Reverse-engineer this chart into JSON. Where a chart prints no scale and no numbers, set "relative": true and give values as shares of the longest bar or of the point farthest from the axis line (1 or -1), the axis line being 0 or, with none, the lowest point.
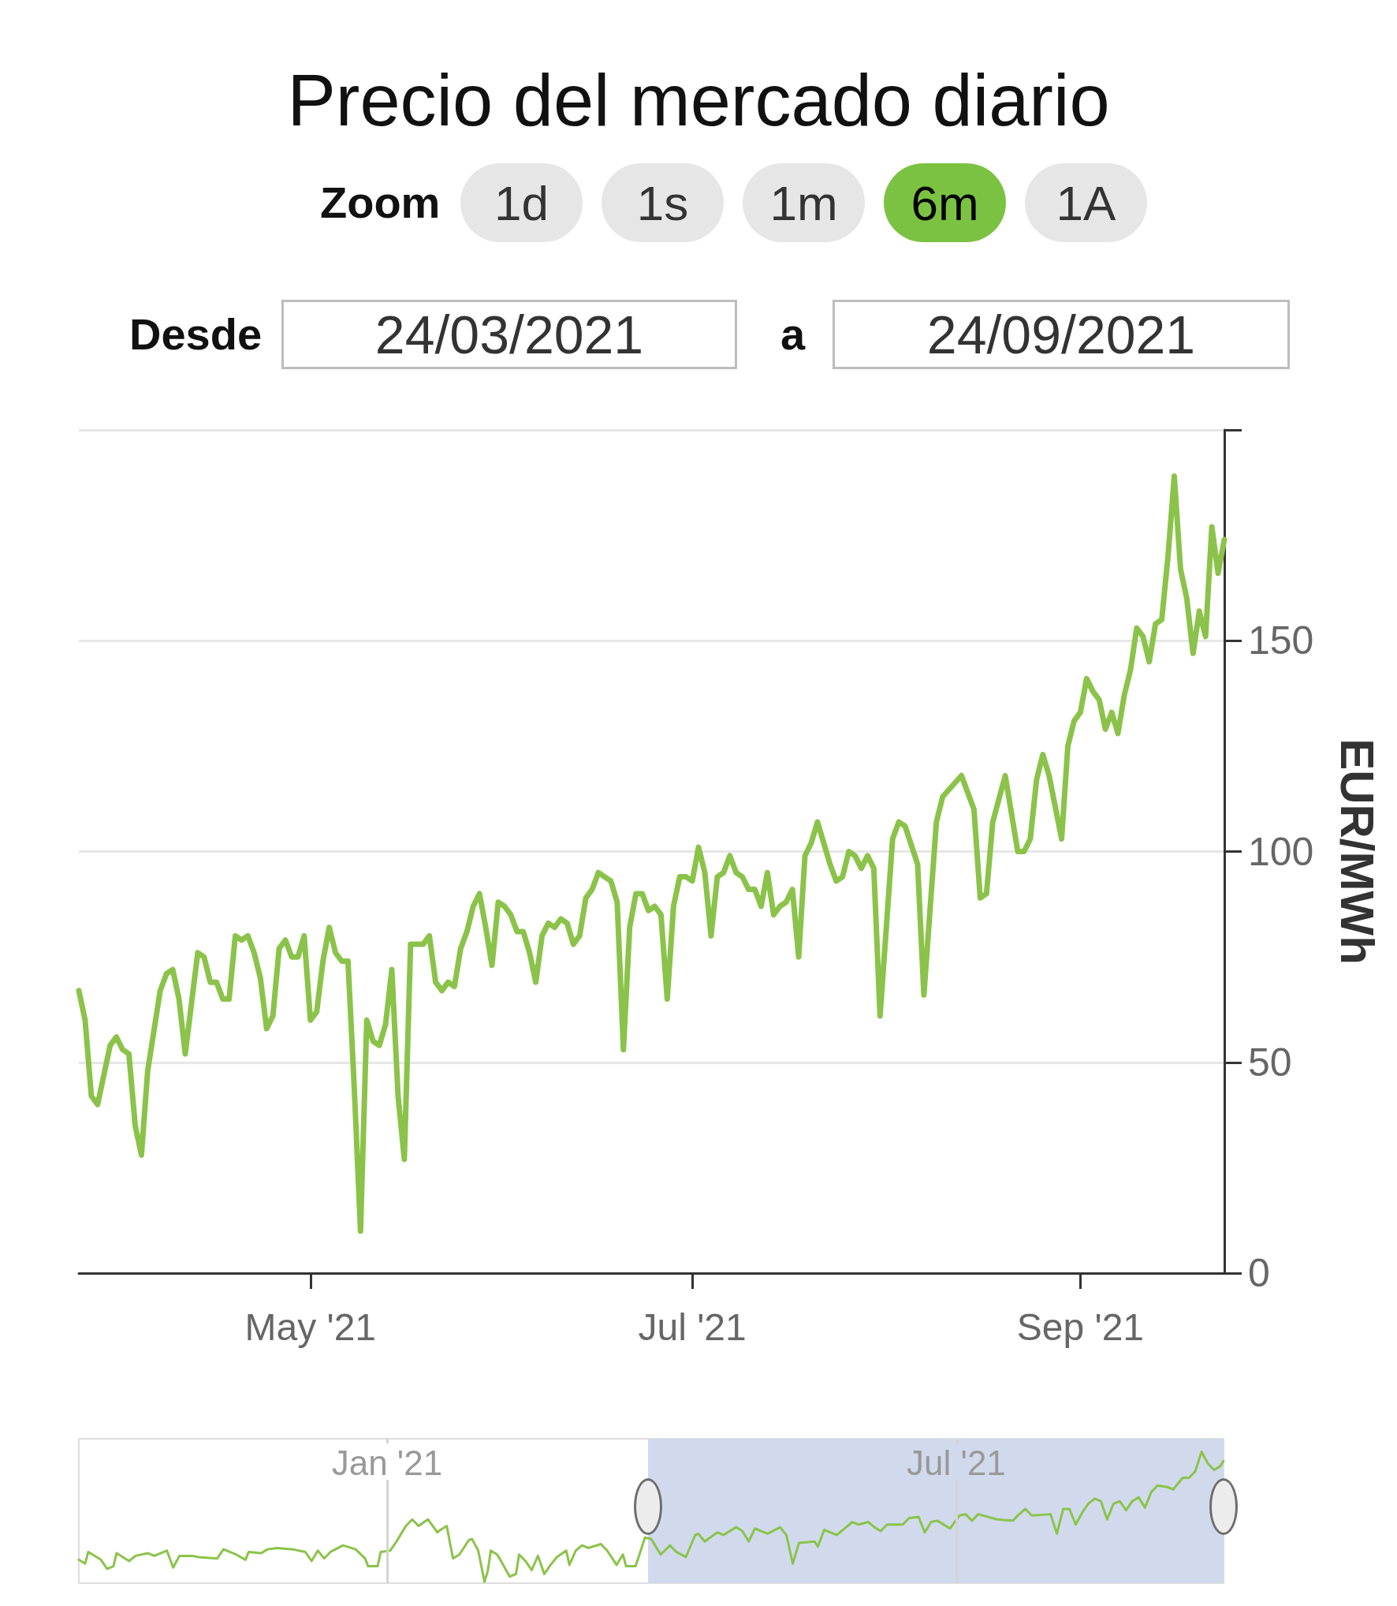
{
  "chart_data": [
    {
      "type": "line",
      "title": "Precio del mercado diario",
      "ylabel": "EUR/MWh",
      "annotations": [
        "Zoom",
        "1d",
        "1s",
        "1m",
        "6m",
        "1A",
        "Desde",
        "24/03/2021",
        "a",
        "24/09/2021"
      ],
      "x": [
        "2021-03-25",
        "2021-03-26",
        "2021-03-27",
        "2021-03-28",
        "2021-03-30",
        "2021-03-31",
        "2021-04-01",
        "2021-04-02",
        "2021-04-03",
        "2021-04-04",
        "2021-04-05",
        "2021-04-07",
        "2021-04-08",
        "2021-04-09",
        "2021-04-10",
        "2021-04-11",
        "2021-04-12",
        "2021-04-13",
        "2021-04-14",
        "2021-04-15",
        "2021-04-16",
        "2021-04-17",
        "2021-04-18",
        "2021-04-19",
        "2021-04-20",
        "2021-04-21",
        "2021-04-22",
        "2021-04-23",
        "2021-04-24",
        "2021-04-25",
        "2021-04-26",
        "2021-04-27",
        "2021-04-28",
        "2021-04-29",
        "2021-04-30",
        "2021-05-01",
        "2021-05-02",
        "2021-05-03",
        "2021-05-04",
        "2021-05-05",
        "2021-05-06",
        "2021-05-07",
        "2021-05-08",
        "2021-05-09",
        "2021-05-10",
        "2021-05-11",
        "2021-05-12",
        "2021-05-13",
        "2021-05-14",
        "2021-05-15",
        "2021-05-16",
        "2021-05-17",
        "2021-05-18",
        "2021-05-19",
        "2021-05-20",
        "2021-05-21",
        "2021-05-22",
        "2021-05-23",
        "2021-05-24",
        "2021-05-25",
        "2021-05-26",
        "2021-05-27",
        "2021-05-28",
        "2021-05-29",
        "2021-05-30",
        "2021-05-31",
        "2021-06-01",
        "2021-06-02",
        "2021-06-03",
        "2021-06-04",
        "2021-06-05",
        "2021-06-06",
        "2021-06-07",
        "2021-06-08",
        "2021-06-09",
        "2021-06-10",
        "2021-06-11",
        "2021-06-12",
        "2021-06-13",
        "2021-06-14",
        "2021-06-15",
        "2021-06-16",
        "2021-06-17",
        "2021-06-18",
        "2021-06-19",
        "2021-06-20",
        "2021-06-21",
        "2021-06-22",
        "2021-06-23",
        "2021-06-24",
        "2021-06-25",
        "2021-06-26",
        "2021-06-27",
        "2021-06-28",
        "2021-06-29",
        "2021-06-30",
        "2021-07-01",
        "2021-07-02",
        "2021-07-03",
        "2021-07-04",
        "2021-07-05",
        "2021-07-06",
        "2021-07-07",
        "2021-07-08",
        "2021-07-09",
        "2021-07-10",
        "2021-07-11",
        "2021-07-12",
        "2021-07-13",
        "2021-07-14",
        "2021-07-15",
        "2021-07-16",
        "2021-07-17",
        "2021-07-18",
        "2021-07-19",
        "2021-07-20",
        "2021-07-21",
        "2021-07-22",
        "2021-07-23",
        "2021-07-24",
        "2021-07-25",
        "2021-07-26",
        "2021-07-27",
        "2021-07-28",
        "2021-07-29",
        "2021-07-30",
        "2021-07-31",
        "2021-08-02",
        "2021-08-03",
        "2021-08-04",
        "2021-08-06",
        "2021-08-07",
        "2021-08-09",
        "2021-08-10",
        "2021-08-13",
        "2021-08-15",
        "2021-08-16",
        "2021-08-17",
        "2021-08-18",
        "2021-08-20",
        "2021-08-22",
        "2021-08-23",
        "2021-08-24",
        "2021-08-25",
        "2021-08-26",
        "2021-08-27",
        "2021-08-29",
        "2021-08-30",
        "2021-08-31",
        "2021-09-01",
        "2021-09-02",
        "2021-09-03",
        "2021-09-04",
        "2021-09-05",
        "2021-09-06",
        "2021-09-07",
        "2021-09-08",
        "2021-09-09",
        "2021-09-10",
        "2021-09-11",
        "2021-09-12",
        "2021-09-13",
        "2021-09-14",
        "2021-09-15",
        "2021-09-16",
        "2021-09-17",
        "2021-09-18",
        "2021-09-19",
        "2021-09-20",
        "2021-09-21",
        "2021-09-22",
        "2021-09-23",
        "2021-09-24"
      ],
      "values": [
        67,
        60,
        42,
        40,
        54,
        56,
        53,
        52,
        35,
        28,
        48,
        67,
        71,
        72,
        65,
        52,
        64,
        76,
        75,
        69,
        69,
        65,
        65,
        80,
        79,
        80,
        76,
        70,
        58,
        61,
        77,
        79,
        75,
        75,
        80,
        60,
        62,
        74,
        82,
        76,
        74,
        74,
        44,
        10,
        60,
        55,
        54,
        59,
        72,
        42,
        27,
        78,
        78,
        78,
        80,
        69,
        67,
        69,
        68,
        77,
        81,
        87,
        90,
        82,
        73,
        88,
        87,
        85,
        81,
        81,
        76,
        69,
        80,
        83,
        82,
        84,
        83,
        78,
        80,
        89,
        91,
        95,
        94,
        93,
        88,
        53,
        82,
        90,
        90,
        86,
        87,
        85,
        65,
        87,
        94,
        94,
        93,
        101,
        95,
        80,
        94,
        95,
        99,
        95,
        94,
        91,
        91,
        87,
        95,
        85,
        87,
        88,
        91,
        75,
        99,
        102,
        107,
        102,
        97,
        93,
        94,
        100,
        99,
        96,
        99,
        96,
        61,
        103,
        107,
        106,
        97,
        66,
        107,
        113,
        118,
        110,
        89,
        90,
        107,
        118,
        100,
        100,
        103,
        117,
        123,
        118,
        103,
        125,
        131,
        133,
        141,
        138,
        136,
        129,
        133,
        128,
        137,
        143,
        153,
        151,
        145,
        154,
        155,
        170,
        189,
        167,
        160,
        147,
        157,
        151,
        177,
        166,
        174
      ],
      "color": "#8bc34a",
      "xlim": [
        "2021-03-25",
        "2021-09-24"
      ],
      "xticks": [
        {
          "value": "2021-05-01",
          "label": "May '21"
        },
        {
          "value": "2021-07-01",
          "label": "Jul '21"
        },
        {
          "value": "2021-09-01",
          "label": "Sep '21"
        }
      ],
      "ylim": [
        0,
        200
      ],
      "yticks": [
        0,
        50,
        100,
        150,
        {
          "value": 200,
          "label": null
        }
      ],
      "grid": "y"
    },
    {
      "type": "line",
      "relative": true,
      "x": [
        "2020-09-25",
        "2020-09-27",
        "2020-09-28",
        "2020-10-02",
        "2020-10-04",
        "2020-10-06",
        "2020-10-07",
        "2020-10-11",
        "2020-10-13",
        "2020-10-17",
        "2020-10-19",
        "2020-10-23",
        "2020-10-25",
        "2020-10-27",
        "2020-10-31",
        "2020-11-02",
        "2020-11-08",
        "2020-11-10",
        "2020-11-14",
        "2020-11-17",
        "2020-11-18",
        "2020-11-22",
        "2020-11-24",
        "2020-11-27",
        "2020-12-02",
        "2020-12-06",
        "2020-12-08",
        "2020-12-10",
        "2020-12-12",
        "2020-12-14",
        "2020-12-18",
        "2020-12-22",
        "2020-12-25",
        "2020-12-26",
        "2020-12-29",
        "2020-12-30",
        "2021-01-02",
        "2021-01-04",
        "2021-01-07",
        "2021-01-09",
        "2021-01-11",
        "2021-01-14",
        "2021-01-17",
        "2021-01-18",
        "2021-01-20",
        "2021-01-21",
        "2021-01-22",
        "2021-01-24",
        "2021-01-27",
        "2021-01-28",
        "2021-01-30",
        "2021-02-01",
        "2021-02-02",
        "2021-02-03",
        "2021-02-05",
        "2021-02-06",
        "2021-02-09",
        "2021-02-11",
        "2021-02-12",
        "2021-02-14",
        "2021-02-16",
        "2021-02-18",
        "2021-02-20",
        "2021-02-22",
        "2021-02-24",
        "2021-02-27",
        "2021-02-28",
        "2021-03-02",
        "2021-03-04",
        "2021-03-06",
        "2021-03-10",
        "2021-03-12",
        "2021-03-15",
        "2021-03-17",
        "2021-03-18",
        "2021-03-21",
        "2021-03-22",
        "2021-03-24",
        "2021-03-26",
        "2021-03-29",
        "2021-04-01",
        "2021-04-03",
        "2021-04-06",
        "2021-04-09",
        "2021-04-10",
        "2021-04-12",
        "2021-04-16",
        "2021-04-18",
        "2021-04-22",
        "2021-04-24",
        "2021-04-26",
        "2021-04-28",
        "2021-05-02",
        "2021-05-06",
        "2021-05-08",
        "2021-05-10",
        "2021-05-12",
        "2021-05-17",
        "2021-05-18",
        "2021-05-20",
        "2021-05-24",
        "2021-05-27",
        "2021-05-29",
        "2021-05-31",
        "2021-06-03",
        "2021-06-05",
        "2021-06-07",
        "2021-06-09",
        "2021-06-14",
        "2021-06-16",
        "2021-06-19",
        "2021-06-21",
        "2021-06-23",
        "2021-06-25",
        "2021-06-29",
        "2021-07-02",
        "2021-07-04",
        "2021-07-06",
        "2021-07-08",
        "2021-07-14",
        "2021-07-19",
        "2021-07-21",
        "2021-07-23",
        "2021-07-25",
        "2021-07-31",
        "2021-08-02",
        "2021-08-04",
        "2021-08-06",
        "2021-08-08",
        "2021-08-10",
        "2021-08-12",
        "2021-08-14",
        "2021-08-16",
        "2021-08-18",
        "2021-08-20",
        "2021-08-22",
        "2021-08-24",
        "2021-08-26",
        "2021-08-28",
        "2021-08-30",
        "2021-09-01",
        "2021-09-03",
        "2021-09-06",
        "2021-09-08",
        "2021-09-11",
        "2021-09-13",
        "2021-09-15",
        "2021-09-17",
        "2021-09-19",
        "2021-09-21",
        "2021-09-23",
        "2021-09-24"
      ],
      "values": [
        0.17,
        0.14,
        0.23,
        0.17,
        0.1,
        0.12,
        0.22,
        0.16,
        0.2,
        0.22,
        0.2,
        0.24,
        0.11,
        0.2,
        0.2,
        0.19,
        0.18,
        0.25,
        0.21,
        0.17,
        0.23,
        0.22,
        0.25,
        0.26,
        0.25,
        0.23,
        0.16,
        0.24,
        0.18,
        0.23,
        0.28,
        0.25,
        0.18,
        0.12,
        0.12,
        0.23,
        0.24,
        0.31,
        0.43,
        0.48,
        0.43,
        0.48,
        0.38,
        0.4,
        0.43,
        0.3,
        0.18,
        0.21,
        0.32,
        0.33,
        0.24,
        0,
        0.08,
        0.24,
        0.21,
        0.17,
        0.04,
        0.06,
        0.21,
        0.16,
        0.09,
        0.2,
        0.06,
        0.13,
        0.19,
        0.24,
        0.13,
        0.24,
        0.28,
        0.26,
        0.29,
        0.24,
        0.13,
        0.21,
        0.12,
        0.12,
        0.19,
        0.34,
        0.33,
        0.21,
        0.28,
        0.23,
        0.19,
        0.36,
        0.37,
        0.31,
        0.38,
        0.36,
        0.42,
        0.39,
        0.31,
        0.41,
        0.37,
        0.42,
        0.36,
        0.14,
        0.3,
        0.31,
        0.27,
        0.4,
        0.36,
        0.42,
        0.46,
        0.44,
        0.46,
        0.42,
        0.39,
        0.44,
        0.44,
        0.49,
        0.5,
        0.38,
        0.46,
        0.47,
        0.41,
        0.51,
        0.52,
        0.47,
        0.52,
        0.48,
        0.47,
        0.52,
        0.56,
        0.51,
        0.52,
        0.37,
        0.56,
        0.56,
        0.44,
        0.53,
        0.6,
        0.64,
        0.62,
        0.48,
        0.6,
        0.62,
        0.55,
        0.62,
        0.65,
        0.57,
        0.69,
        0.74,
        0.73,
        0.71,
        0.8,
        0.8,
        0.85,
        1,
        0.91,
        0.86,
        0.89,
        0.93
      ],
      "color": "#8bc34a",
      "xlim": [
        "2020-09-25",
        "2021-09-24"
      ],
      "xticks": [
        {
          "value": "2021-01-01",
          "label": "Jan '21"
        },
        {
          "value": "2021-07-01",
          "label": "Jul '21"
        }
      ],
      "grid": "x",
      "bands": [
        {
          "axis": "x",
          "from": "2021-03-25",
          "to": "2021-09-24",
          "color": "#d1daed"
        }
      ]
    }
  ]
}
